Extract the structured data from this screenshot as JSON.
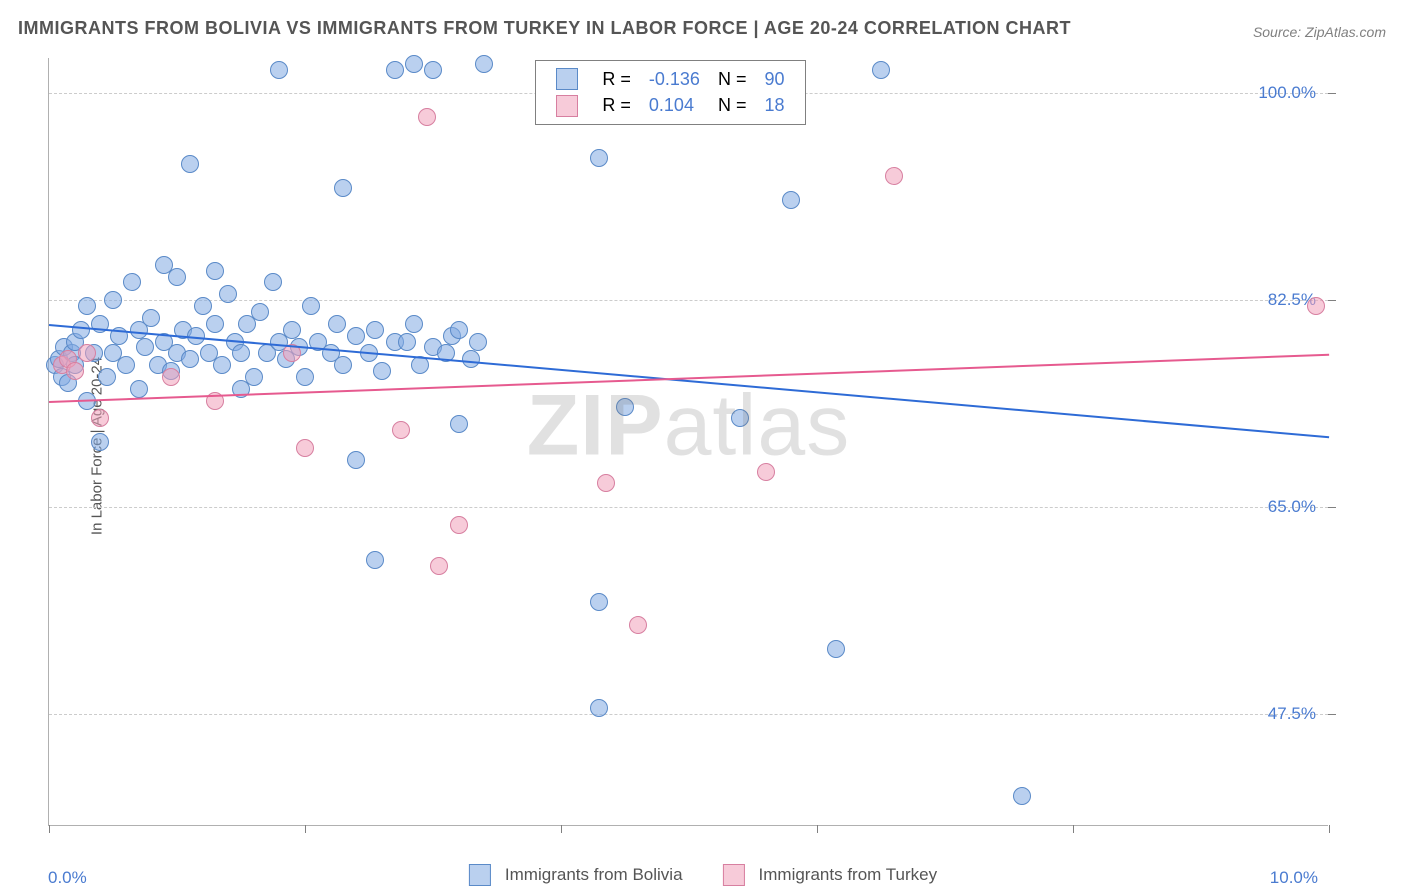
{
  "title": "IMMIGRANTS FROM BOLIVIA VS IMMIGRANTS FROM TURKEY IN LABOR FORCE | AGE 20-24 CORRELATION CHART",
  "source": "Source: ZipAtlas.com",
  "ylabel": "In Labor Force | Age 20-24",
  "watermark_bold": "ZIP",
  "watermark_rest": "atlas",
  "chart": {
    "type": "scatter",
    "xlim": [
      0.0,
      10.0
    ],
    "ylim": [
      38.0,
      103.0
    ],
    "xtick_min_label": "0.0%",
    "xtick_max_label": "10.0%",
    "xtick_positions": [
      0.0,
      2.0,
      4.0,
      6.0,
      8.0,
      10.0
    ],
    "ytick_labels": [
      "47.5%",
      "65.0%",
      "82.5%",
      "100.0%"
    ],
    "ytick_values": [
      47.5,
      65.0,
      82.5,
      100.0
    ],
    "grid_color": "#cccccc",
    "background_color": "#ffffff",
    "marker_radius": 9,
    "marker_border_width": 1,
    "series": [
      {
        "name": "Immigrants from Bolivia",
        "color_fill": "rgba(130,170,225,0.55)",
        "color_stroke": "#5a8ac8",
        "trend_color": "#2e6bd6",
        "R": "-0.136",
        "N": "90",
        "trend_start_y": 80.5,
        "trend_end_y": 71.0,
        "points": [
          [
            0.05,
            77.0
          ],
          [
            0.08,
            77.5
          ],
          [
            0.1,
            76.0
          ],
          [
            0.12,
            78.5
          ],
          [
            0.15,
            75.5
          ],
          [
            0.18,
            78.0
          ],
          [
            0.2,
            79.0
          ],
          [
            0.2,
            77.0
          ],
          [
            0.25,
            80.0
          ],
          [
            0.3,
            74.0
          ],
          [
            0.3,
            82.0
          ],
          [
            0.35,
            78.0
          ],
          [
            0.4,
            80.5
          ],
          [
            0.4,
            70.5
          ],
          [
            0.45,
            76.0
          ],
          [
            0.5,
            82.5
          ],
          [
            0.5,
            78.0
          ],
          [
            0.55,
            79.5
          ],
          [
            0.6,
            77.0
          ],
          [
            0.65,
            84.0
          ],
          [
            0.7,
            80.0
          ],
          [
            0.7,
            75.0
          ],
          [
            0.75,
            78.5
          ],
          [
            0.8,
            81.0
          ],
          [
            0.85,
            77.0
          ],
          [
            0.9,
            85.5
          ],
          [
            0.9,
            79.0
          ],
          [
            0.95,
            76.5
          ],
          [
            1.0,
            84.5
          ],
          [
            1.0,
            78.0
          ],
          [
            1.05,
            80.0
          ],
          [
            1.1,
            77.5
          ],
          [
            1.1,
            94.0
          ],
          [
            1.15,
            79.5
          ],
          [
            1.2,
            82.0
          ],
          [
            1.25,
            78.0
          ],
          [
            1.3,
            85.0
          ],
          [
            1.3,
            80.5
          ],
          [
            1.35,
            77.0
          ],
          [
            1.4,
            83.0
          ],
          [
            1.45,
            79.0
          ],
          [
            1.5,
            78.0
          ],
          [
            1.5,
            75.0
          ],
          [
            1.55,
            80.5
          ],
          [
            1.6,
            76.0
          ],
          [
            1.65,
            81.5
          ],
          [
            1.7,
            78.0
          ],
          [
            1.75,
            84.0
          ],
          [
            1.8,
            102.0
          ],
          [
            1.8,
            79.0
          ],
          [
            1.85,
            77.5
          ],
          [
            1.9,
            80.0
          ],
          [
            1.95,
            78.5
          ],
          [
            2.0,
            76.0
          ],
          [
            2.05,
            82.0
          ],
          [
            2.1,
            79.0
          ],
          [
            2.2,
            78.0
          ],
          [
            2.25,
            80.5
          ],
          [
            2.3,
            77.0
          ],
          [
            2.3,
            92.0
          ],
          [
            2.4,
            79.5
          ],
          [
            2.4,
            69.0
          ],
          [
            2.5,
            78.0
          ],
          [
            2.55,
            80.0
          ],
          [
            2.55,
            60.5
          ],
          [
            2.6,
            76.5
          ],
          [
            2.7,
            79.0
          ],
          [
            2.7,
            102.0
          ],
          [
            2.8,
            79.0
          ],
          [
            2.85,
            80.5
          ],
          [
            2.85,
            102.5
          ],
          [
            2.9,
            77.0
          ],
          [
            3.0,
            78.5
          ],
          [
            3.0,
            102.0
          ],
          [
            3.1,
            78.0
          ],
          [
            3.15,
            79.5
          ],
          [
            3.2,
            80.0
          ],
          [
            3.2,
            72.0
          ],
          [
            3.3,
            77.5
          ],
          [
            3.35,
            79.0
          ],
          [
            3.4,
            102.5
          ],
          [
            4.3,
            94.5
          ],
          [
            4.3,
            48.0
          ],
          [
            4.3,
            57.0
          ],
          [
            4.5,
            73.5
          ],
          [
            5.4,
            72.5
          ],
          [
            5.8,
            91.0
          ],
          [
            6.5,
            102.0
          ],
          [
            6.15,
            53.0
          ],
          [
            7.6,
            40.5
          ]
        ]
      },
      {
        "name": "Immigrants from Turkey",
        "color_fill": "rgba(240,160,185,0.55)",
        "color_stroke": "#d77fa0",
        "trend_color": "#e65a8f",
        "R": "0.104",
        "N": "18",
        "trend_start_y": 74.0,
        "trend_end_y": 78.0,
        "points": [
          [
            0.1,
            77.0
          ],
          [
            0.15,
            77.5
          ],
          [
            0.2,
            76.5
          ],
          [
            0.3,
            78.0
          ],
          [
            0.4,
            72.5
          ],
          [
            0.95,
            76.0
          ],
          [
            1.3,
            74.0
          ],
          [
            1.9,
            78.0
          ],
          [
            2.0,
            70.0
          ],
          [
            2.75,
            71.5
          ],
          [
            2.95,
            98.0
          ],
          [
            3.05,
            60.0
          ],
          [
            3.2,
            63.5
          ],
          [
            4.35,
            67.0
          ],
          [
            4.6,
            55.0
          ],
          [
            5.6,
            68.0
          ],
          [
            6.6,
            93.0
          ],
          [
            9.9,
            82.0
          ]
        ]
      }
    ]
  },
  "legend_top": {
    "R_label": "R =",
    "N_label": "N ="
  }
}
